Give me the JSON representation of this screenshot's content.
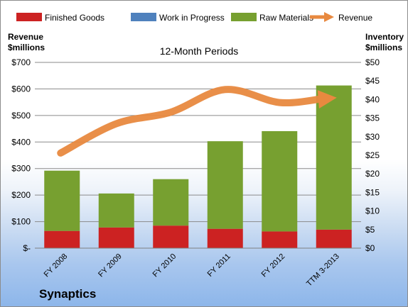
{
  "company": "Synaptics",
  "chart_data": {
    "type": "bar",
    "title": "12-Month Periods",
    "categories": [
      "FY 2008",
      "FY 2009",
      "FY 2010",
      "FY 2011",
      "FY 2012",
      "TTM 3-2013"
    ],
    "series": [
      {
        "name": "Finished Goods",
        "kind": "stacked-bar",
        "color": "#cc2222",
        "axis": "left",
        "values": [
          65,
          78,
          85,
          73,
          63,
          70
        ]
      },
      {
        "name": "Work in Progress",
        "kind": "stacked-bar",
        "color": "#4f81bd",
        "axis": "left",
        "values": [
          0,
          0,
          0,
          0,
          0,
          0
        ]
      },
      {
        "name": "Raw Materials",
        "kind": "stacked-bar",
        "color": "#77a030",
        "axis": "left",
        "values": [
          227,
          128,
          175,
          330,
          378,
          543
        ]
      },
      {
        "name": "Revenue",
        "kind": "line-arrow",
        "color": "#e8893f",
        "axis": "right",
        "values": [
          25.6,
          33.5,
          36.6,
          42.7,
          39.2,
          40.5
        ]
      }
    ],
    "left_axis": {
      "label_line1": "Revenue",
      "label_line2": "$millions",
      "ylim": [
        0,
        700
      ],
      "ticks": [
        0,
        100,
        200,
        300,
        400,
        500,
        600,
        700
      ],
      "tick_labels": [
        "$-",
        "$100",
        "$200",
        "$300",
        "$400",
        "$500",
        "$600",
        "$700"
      ]
    },
    "right_axis": {
      "label_line1": "Inventory",
      "label_line2": "$millions",
      "ylim": [
        0,
        50
      ],
      "ticks": [
        0,
        5,
        10,
        15,
        20,
        25,
        30,
        35,
        40,
        45,
        50
      ],
      "tick_labels": [
        "$0",
        "$5",
        "$10",
        "$15",
        "$20",
        "$25",
        "$30",
        "$35",
        "$40",
        "$45",
        "$50"
      ]
    },
    "legend": {
      "position": "top",
      "items": [
        {
          "label": "Finished Goods",
          "color": "#cc2222",
          "symbol": "box"
        },
        {
          "label": "Work in Progress",
          "color": "#4f81bd",
          "symbol": "box"
        },
        {
          "label": "Raw Materials",
          "color": "#77a030",
          "symbol": "box"
        },
        {
          "label": "Revenue",
          "color": "#e8893f",
          "symbol": "arrow"
        }
      ]
    },
    "grid": true
  }
}
